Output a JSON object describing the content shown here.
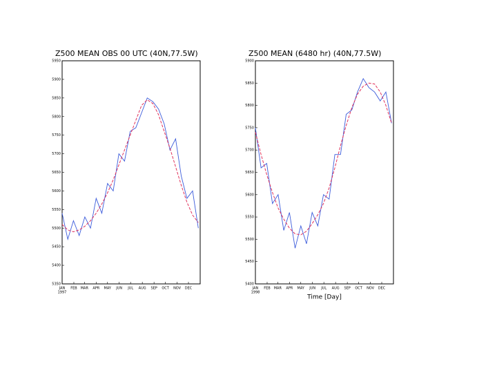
{
  "chart_data": [
    {
      "type": "line",
      "title": "Z500  MEAN  OBS   00 UTC    (40N,77.5W)",
      "xlim": [
        0,
        365
      ],
      "xticks": [
        {
          "value": 0,
          "label": "JAN"
        },
        {
          "value": 31,
          "label": "FEB"
        },
        {
          "value": 59,
          "label": "MAR"
        },
        {
          "value": 90,
          "label": "APR"
        },
        {
          "value": 120,
          "label": "MAY"
        },
        {
          "value": 151,
          "label": "JUN"
        },
        {
          "value": 181,
          "label": "JUL"
        },
        {
          "value": 212,
          "label": "AUG"
        },
        {
          "value": 243,
          "label": "SEP"
        },
        {
          "value": 273,
          "label": "OCT"
        },
        {
          "value": 304,
          "label": "NOV"
        },
        {
          "value": 334,
          "label": "DEC"
        }
      ],
      "year_label": "1997",
      "ylim": [
        5350,
        5950
      ],
      "yticks": [
        5350,
        5400,
        5450,
        5500,
        5550,
        5600,
        5650,
        5700,
        5750,
        5800,
        5850,
        5900,
        5950
      ],
      "x": [
        0,
        15,
        30,
        45,
        60,
        75,
        90,
        105,
        120,
        135,
        150,
        165,
        180,
        195,
        210,
        225,
        240,
        255,
        270,
        285,
        300,
        315,
        330,
        345,
        360
      ],
      "series": [
        {
          "color": "#3b5bdb",
          "dashed": false,
          "values": [
            5540,
            5470,
            5520,
            5480,
            5530,
            5500,
            5580,
            5540,
            5620,
            5600,
            5700,
            5680,
            5760,
            5770,
            5810,
            5850,
            5840,
            5820,
            5780,
            5710,
            5740,
            5640,
            5580,
            5600,
            5500
          ]
        },
        {
          "color": "#e0305a",
          "dashed": true,
          "values": [
            5510,
            5495,
            5490,
            5495,
            5505,
            5520,
            5540,
            5565,
            5595,
            5630,
            5670,
            5710,
            5750,
            5790,
            5830,
            5845,
            5835,
            5805,
            5760,
            5715,
            5665,
            5615,
            5570,
            5535,
            5515
          ]
        }
      ]
    },
    {
      "type": "line",
      "title": "Z500  MEAN  (6480  hr)          (40N,77.5W)",
      "x_label": "Time  [Day]",
      "xlim": [
        0,
        365
      ],
      "xticks": [
        {
          "value": 0,
          "label": "JAN"
        },
        {
          "value": 31,
          "label": "FEB"
        },
        {
          "value": 59,
          "label": "MAR"
        },
        {
          "value": 90,
          "label": "APR"
        },
        {
          "value": 120,
          "label": "MAY"
        },
        {
          "value": 151,
          "label": "JUN"
        },
        {
          "value": 181,
          "label": "JUL"
        },
        {
          "value": 212,
          "label": "AUG"
        },
        {
          "value": 243,
          "label": "SEP"
        },
        {
          "value": 273,
          "label": "OCT"
        },
        {
          "value": 304,
          "label": "NOV"
        },
        {
          "value": 334,
          "label": "DEC"
        }
      ],
      "year_label": "1998",
      "ylim": [
        5400,
        5900
      ],
      "yticks": [
        5400,
        5450,
        5500,
        5550,
        5600,
        5650,
        5700,
        5750,
        5800,
        5850,
        5900
      ],
      "x": [
        0,
        15,
        30,
        45,
        60,
        75,
        90,
        105,
        120,
        135,
        150,
        165,
        180,
        195,
        210,
        225,
        240,
        255,
        270,
        285,
        300,
        315,
        330,
        345,
        360
      ],
      "series": [
        {
          "color": "#3b5bdb",
          "dashed": false,
          "values": [
            5750,
            5660,
            5670,
            5580,
            5600,
            5520,
            5560,
            5480,
            5530,
            5490,
            5560,
            5530,
            5600,
            5590,
            5690,
            5690,
            5780,
            5790,
            5830,
            5860,
            5840,
            5830,
            5810,
            5830,
            5760
          ]
        },
        {
          "color": "#e0305a",
          "dashed": true,
          "values": [
            5740,
            5690,
            5645,
            5605,
            5570,
            5545,
            5525,
            5512,
            5510,
            5518,
            5535,
            5555,
            5580,
            5615,
            5660,
            5710,
            5755,
            5795,
            5825,
            5843,
            5850,
            5848,
            5830,
            5800,
            5760
          ]
        }
      ]
    }
  ]
}
